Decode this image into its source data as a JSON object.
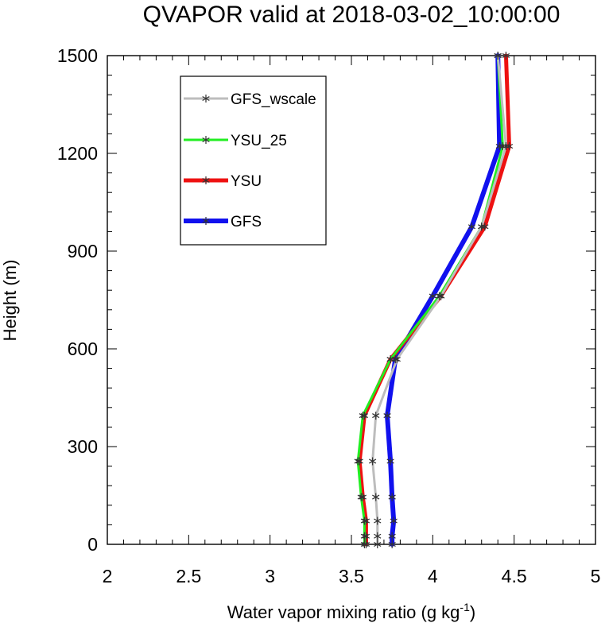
{
  "chart_data": {
    "type": "line",
    "title": "QVAPOR valid at 2018-03-02_10:00:00",
    "xlabel": "Water vapor mixing ratio (g kg",
    "xlabel_sup": "-1",
    "xlabel_end": ")",
    "ylabel": "Height (m)",
    "xlim": [
      2,
      5
    ],
    "ylim": [
      0,
      1500
    ],
    "x_ticks": [
      2,
      2.5,
      3,
      3.5,
      4,
      4.5,
      5
    ],
    "x_tick_labels": [
      "2",
      "2.5",
      "3",
      "3.5",
      "4",
      "4.5",
      "5"
    ],
    "y_ticks": [
      0,
      300,
      600,
      900,
      1200,
      1500
    ],
    "y_tick_labels": [
      "0",
      "300",
      "600",
      "900",
      "1200",
      "1500"
    ],
    "grid": false,
    "legend_position": "top-left",
    "marker": "asterisk",
    "series": [
      {
        "name": "GFS_wscale",
        "color": "#bdbdbd",
        "points": [
          [
            3.66,
            0
          ],
          [
            3.66,
            25
          ],
          [
            3.66,
            72
          ],
          [
            3.65,
            145
          ],
          [
            3.63,
            255
          ],
          [
            3.65,
            395
          ],
          [
            3.78,
            568
          ],
          [
            4.05,
            762
          ],
          [
            4.3,
            975
          ],
          [
            4.45,
            1222
          ],
          [
            4.4,
            1500
          ]
        ]
      },
      {
        "name": "YSU_25",
        "color": "#22ee22",
        "points": [
          [
            3.58,
            0
          ],
          [
            3.58,
            25
          ],
          [
            3.58,
            72
          ],
          [
            3.56,
            145
          ],
          [
            3.54,
            255
          ],
          [
            3.57,
            395
          ],
          [
            3.74,
            568
          ],
          [
            4.04,
            762
          ],
          [
            4.3,
            975
          ],
          [
            4.43,
            1222
          ],
          [
            4.4,
            1500
          ]
        ]
      },
      {
        "name": "YSU",
        "color": "#ee1111",
        "points": [
          [
            3.59,
            0
          ],
          [
            3.59,
            25
          ],
          [
            3.59,
            72
          ],
          [
            3.57,
            145
          ],
          [
            3.55,
            255
          ],
          [
            3.58,
            395
          ],
          [
            3.74,
            568
          ],
          [
            4.05,
            762
          ],
          [
            4.32,
            975
          ],
          [
            4.47,
            1222
          ],
          [
            4.45,
            1500
          ]
        ]
      },
      {
        "name": "GFS",
        "color": "#1111ee",
        "points": [
          [
            3.75,
            0
          ],
          [
            3.75,
            25
          ],
          [
            3.76,
            72
          ],
          [
            3.75,
            145
          ],
          [
            3.74,
            255
          ],
          [
            3.72,
            395
          ],
          [
            3.77,
            568
          ],
          [
            4.0,
            762
          ],
          [
            4.24,
            975
          ],
          [
            4.41,
            1222
          ],
          [
            4.4,
            1500
          ]
        ]
      }
    ]
  }
}
